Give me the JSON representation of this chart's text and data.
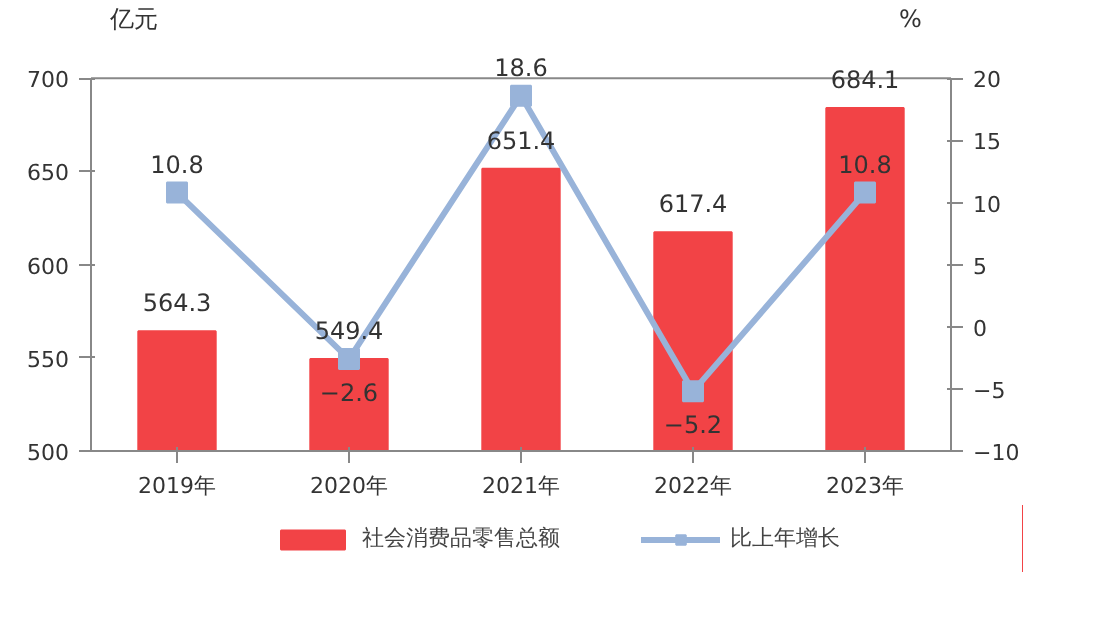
{
  "chart_data": {
    "type": "bar",
    "categories": [
      "2019年",
      "2020年",
      "2021年",
      "2022年",
      "2023年"
    ],
    "ylabel": "亿元",
    "y2label": "%",
    "ylim": [
      500,
      700
    ],
    "yticks": [
      500,
      550,
      600,
      650,
      700
    ],
    "y2lim": [
      -10,
      20
    ],
    "y2ticks": [
      -10,
      -5,
      0,
      5,
      10,
      15,
      20
    ],
    "series": [
      {
        "name": "社会消费品零售总额",
        "color": "#f24346",
        "values": [
          564.3,
          549.4,
          651.4,
          617.4,
          684.1
        ]
      },
      {
        "name": "比上年增长",
        "type": "line",
        "axis": "y2",
        "color": "#98b3d9",
        "marker": "square",
        "values": [
          10.8,
          -2.6,
          18.6,
          -5.2,
          10.8
        ],
        "value_labels": [
          "10.8",
          "−2.6",
          "18.6",
          "−5.2",
          "10.8"
        ]
      }
    ],
    "data_labels": true,
    "legend": "bottom",
    "grid": false
  }
}
